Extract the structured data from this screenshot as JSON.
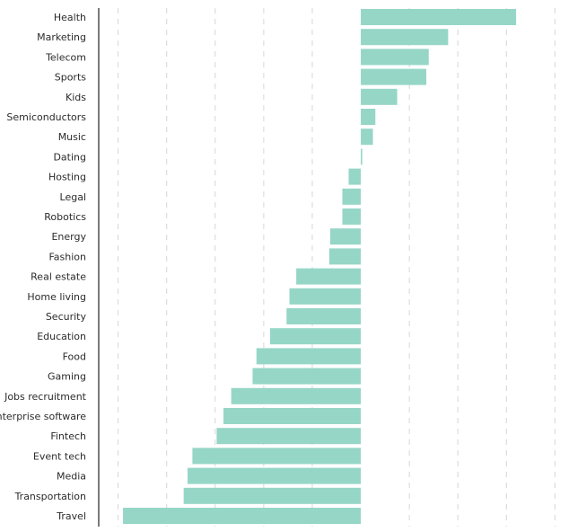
{
  "chart_data": {
    "type": "bar",
    "orientation": "horizontal",
    "categories": [
      "Health",
      "Marketing",
      "Telecom",
      "Sports",
      "Kids",
      "Semiconductors",
      "Music",
      "Dating",
      "Hosting",
      "Legal",
      "Robotics",
      "Energy",
      "Fashion",
      "Real estate",
      "Home living",
      "Security",
      "Education",
      "Food",
      "Gaming",
      "Jobs recruitment",
      "Enterprise software",
      "Fintech",
      "Event tech",
      "Media",
      "Transportation",
      "Travel"
    ],
    "values": [
      32,
      18,
      14,
      13.5,
      7.5,
      3,
      2.5,
      0.3,
      -2.5,
      -3.8,
      -3.8,
      -6.3,
      -6.5,
      -13.3,
      -14.7,
      -15.3,
      -18.7,
      -21.5,
      -22.3,
      -26.7,
      -28.3,
      -29.7,
      -34.7,
      -35.7,
      -36.5,
      -49
    ],
    "xlim": [
      -54,
      44
    ],
    "x_gridlines": [
      -50,
      -40,
      -30,
      -20,
      -10,
      10,
      20,
      30,
      40
    ],
    "grid": true,
    "title": "",
    "xlabel": "",
    "ylabel": "",
    "colors": {
      "bar": "#96d6c7",
      "grid": "#d6d6d6",
      "axis": "#222222",
      "text": "#2b2b2b"
    }
  }
}
